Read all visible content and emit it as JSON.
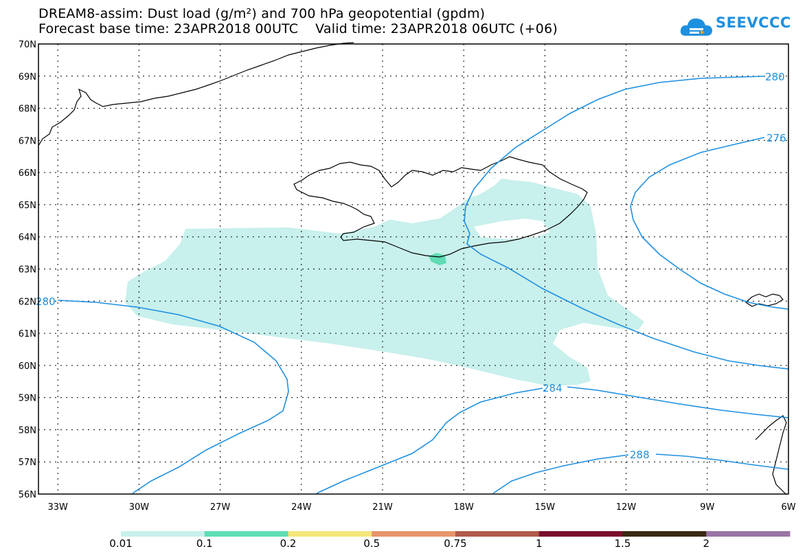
{
  "header": {
    "title_line1": "DREAM8-assim: Dust load (g/m²) and 700 hPa geopotential (gpdm)",
    "title_line2": "Forecast base time: 23APR2018 00UTC    Valid time: 23APR2018 06UTC (+06)",
    "logo_text": "SEEVCCC",
    "logo_icon": "cloud-icon"
  },
  "map": {
    "lat_labels": [
      "70N",
      "69N",
      "68N",
      "67N",
      "66N",
      "65N",
      "64N",
      "63N",
      "62N",
      "61N",
      "60N",
      "59N",
      "58N",
      "57N",
      "56N"
    ],
    "lon_labels": [
      "33W",
      "30W",
      "27W",
      "24W",
      "21W",
      "18W",
      "15W",
      "12W",
      "9W",
      "6W"
    ],
    "contour_labels": [
      "280",
      "276",
      "280",
      "284",
      "288"
    ],
    "colors": {
      "contour": "#1e90e0",
      "dust_light": "#c8f0ec",
      "dust_medium": "#5fdcb4",
      "coastline": "#000000"
    }
  },
  "legend": {
    "labels": [
      "0.01",
      "0.1",
      "0.2",
      "0.5",
      "0.75",
      "1",
      "1.5",
      "2"
    ],
    "colors": [
      "#c8f0ec",
      "#5fdcb4",
      "#f5e67a",
      "#e8946a",
      "#b05a4a",
      "#7a0e2c",
      "#3a2814",
      "#9a74a4"
    ]
  }
}
